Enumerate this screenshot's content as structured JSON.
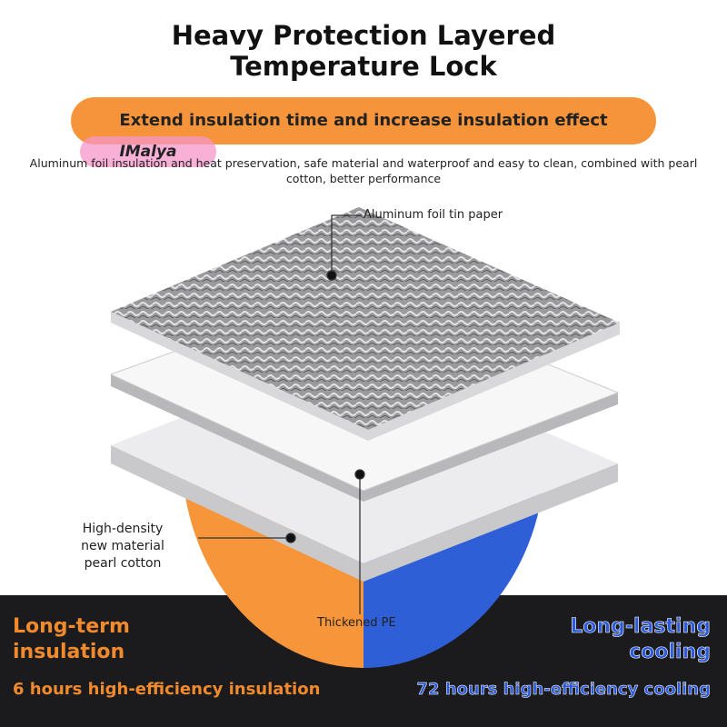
{
  "title": "Heavy Protection Layered Temperature Lock",
  "banner": "Extend insulation time and increase insulation effect",
  "watermark": "IMalya",
  "description": "Aluminum foil insulation and heat preservation, safe material and waterproof and easy to clean, combined with pearl cotton, better performance",
  "layers": {
    "top": "Aluminum foil tin paper",
    "bottom": "High-density new material pearl cotton",
    "middle": "Thickened PE"
  },
  "left": {
    "heading": "Long-term insulation",
    "detail": "6 hours high-efficiency insulation"
  },
  "right": {
    "heading": "Long-lasting cooling",
    "detail": "72 hours high-efficiency cooling"
  }
}
